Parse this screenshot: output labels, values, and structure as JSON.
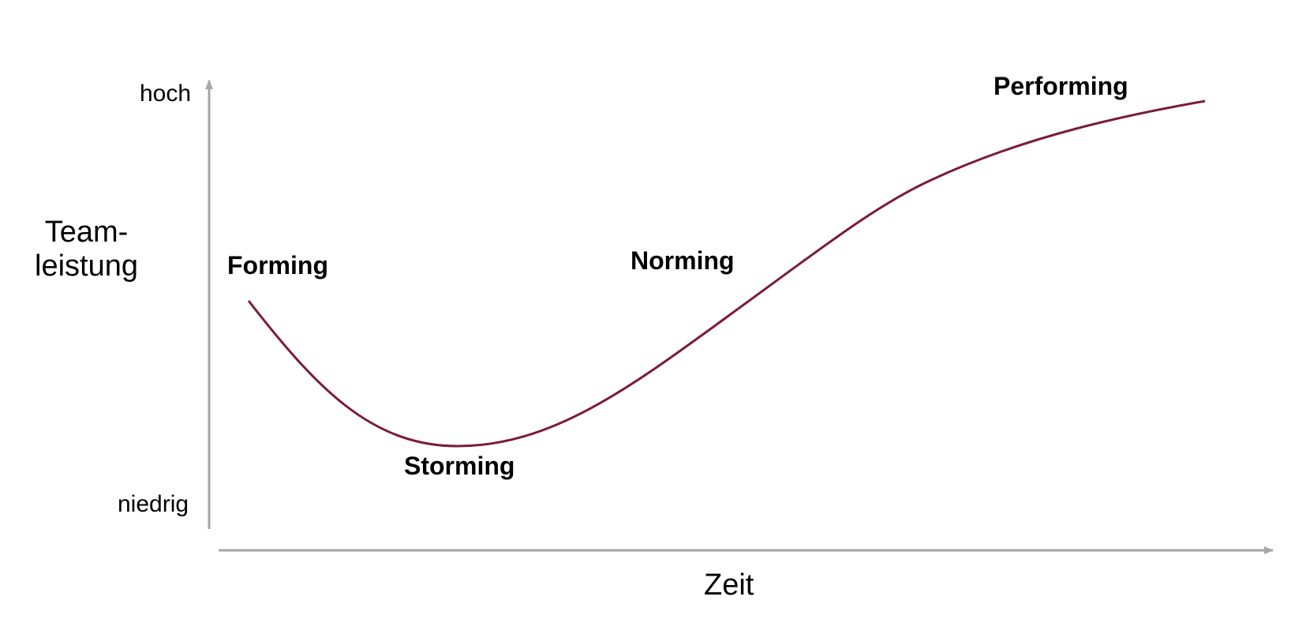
{
  "diagram": {
    "type": "team-development-curve",
    "y_axis": {
      "title_lines": [
        "Team-",
        "leistung"
      ],
      "high_label": "hoch",
      "low_label": "niedrig"
    },
    "x_axis": {
      "title": "Zeit"
    },
    "phases": [
      {
        "label": "Forming"
      },
      {
        "label": "Storming"
      },
      {
        "label": "Norming"
      },
      {
        "label": "Performing"
      }
    ],
    "colors": {
      "curve": "#7b1a3c",
      "axis": "#a6a6a6",
      "text": "#000000"
    }
  }
}
